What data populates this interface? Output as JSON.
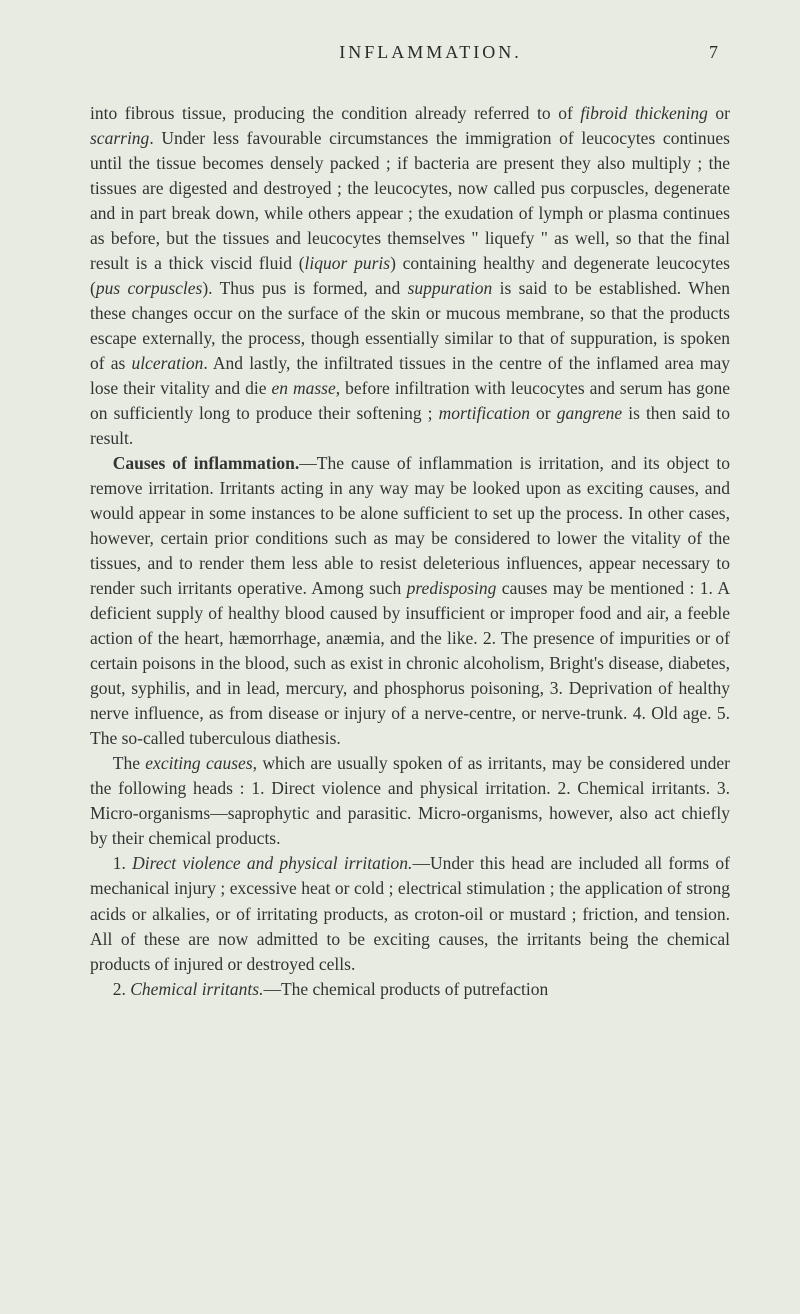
{
  "header": {
    "running_title": "INFLAMMATION.",
    "page_number": "7"
  },
  "paragraphs": {
    "p1_html": "into fibrous tissue, producing the condition already referred to of <em class='italic'>fibroid thickening</em> or <em class='italic'>scarring</em>. Under less favourable circumstances the immigration of leucocytes continues until the tissue becomes densely packed ; if bacteria are present they also multiply ; the tissues are digested and destroyed ; the leucocytes, now called pus corpuscles, degenerate and in part break down, while others appear ; the exudation of lymph or plasma continues as before, but the tissues and leucocytes themselves \" liquefy \" as well, so that the final result is a thick viscid fluid (<em class='italic'>liquor puris</em>) containing healthy and degenerate leucocytes (<em class='italic'>pus corpuscles</em>). Thus pus is formed, and <em class='italic'>suppuration</em> is said to be established. When these changes occur on the surface of the skin or mucous membrane, so that the products escape externally, the process, though essentially similar to that of suppuration, is spoken of as <em class='italic'>ulceration</em>. And lastly, the infiltrated tissues in the centre of the inflamed area may lose their vitality and die <em class='italic'>en masse</em>, before infiltration with leucocytes and serum has gone on sufficiently long to produce their softening ; <em class='italic'>mortification</em> or <em class='italic'>gangrene</em> is then said to result.",
    "p2_html": "<span class='bold'>Causes of inflammation.</span>—The cause of inflammation is irritation, and its object to remove irritation. Irritants acting in any way may be looked upon as exciting causes, and would appear in some instances to be alone sufficient to set up the process. In other cases, however, certain prior conditions such as may be considered to lower the vitality of the tissues, and to render them less able to resist deleterious influences, appear necessary to render such irritants operative. Among such <em class='italic'>predisposing</em> causes may be mentioned : 1. A deficient supply of healthy blood caused by insufficient or improper food and air, a feeble action of the heart, hæmorrhage, anæmia, and the like. 2. The presence of impurities or of certain poisons in the blood, such as exist in chronic alcoholism, Bright's disease, diabetes, gout, syphilis, and in lead, mercury, and phosphorus poisoning, 3. Deprivation of healthy nerve influence, as from disease or injury of a nerve-centre, or nerve-trunk. 4. Old age. 5. The so-called tuberculous diathesis.",
    "p3_html": "The <em class='italic'>exciting causes</em>, which are usually spoken of as irritants, may be considered under the following heads : 1. Direct violence and physical irritation. 2. Chemical irritants. 3. Micro-organisms—saprophytic and parasitic. Micro-organisms, however, also act chiefly by their chemical products.",
    "p4_html": "1. <em class='italic'>Direct violence and physical irritation.</em>—Under this head are included all forms of mechanical injury ; excessive heat or cold ; electrical stimulation ; the application of strong acids or alkalies, or of irritating products, as croton-oil or mustard ; friction, and tension. All of these are now admitted to be exciting causes, the irritants being the chemical products of injured or destroyed cells.",
    "p5_html": "2. <em class='italic'>Chemical irritants.</em>—The chemical products of putrefaction"
  },
  "colors": {
    "background": "#e8ebe2",
    "text": "#2a2a2a"
  },
  "typography": {
    "body_fontsize": 17.5,
    "header_fontsize": 18,
    "line_height": 1.43,
    "font_family": "Georgia, Times New Roman, serif"
  }
}
